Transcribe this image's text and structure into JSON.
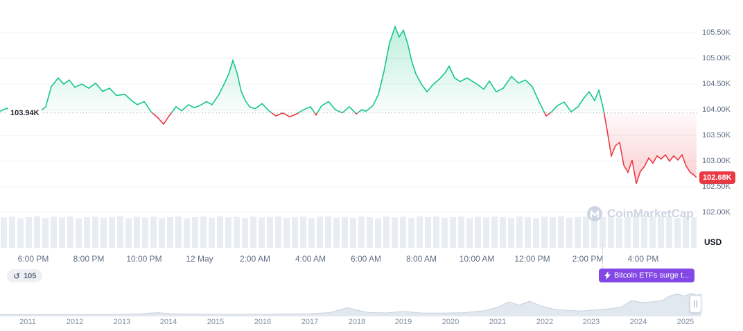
{
  "colors": {
    "green": "#16c784",
    "red": "#ea3943",
    "baseline_line": "#a0aabe",
    "grid": "#eff2f6",
    "axis_text": "#616e85",
    "dark_text": "#222531",
    "volume_bar": "#e8edf3",
    "nav_fill": "#e2e8f0",
    "nav_stroke": "#c8d1dd",
    "news_purple": "#8247e5",
    "pill_bg": "#eef0f4",
    "watermark": "#cdd5e4"
  },
  "watermark": {
    "text": "CoinMarketCap"
  },
  "badges": {
    "history_count": "105",
    "news_label": "Bitcoin ETFs surge t..."
  },
  "chart_data": {
    "type": "line",
    "title": "",
    "xlabel": "",
    "ylabel": "",
    "baseline": {
      "value": 103.94,
      "label": "103.94K"
    },
    "current": {
      "value": 102.68,
      "label": "102.68K"
    },
    "y_axis": {
      "currency_label": "USD",
      "range": [
        101.27,
        106.14
      ],
      "ticks": [
        {
          "value": 105.5,
          "label": "105.50K"
        },
        {
          "value": 105.0,
          "label": "105.00K"
        },
        {
          "value": 104.5,
          "label": "104.50K"
        },
        {
          "value": 104.0,
          "label": "104.00K"
        },
        {
          "value": 103.5,
          "label": "103.50K"
        },
        {
          "value": 103.0,
          "label": "103.00K"
        },
        {
          "value": 102.5,
          "label": "102.50K"
        },
        {
          "value": 102.0,
          "label": "102.00K"
        }
      ]
    },
    "x_axis": {
      "range": [
        0,
        25.125
      ],
      "ticks": [
        {
          "t": 1.2,
          "label": "6:00 PM"
        },
        {
          "t": 3.2,
          "label": "8:00 PM"
        },
        {
          "t": 5.2,
          "label": "10:00 PM"
        },
        {
          "t": 7.2,
          "label": "12 May"
        },
        {
          "t": 9.2,
          "label": "2:00 AM"
        },
        {
          "t": 11.2,
          "label": "4:00 AM"
        },
        {
          "t": 13.2,
          "label": "6:00 AM"
        },
        {
          "t": 15.2,
          "label": "8:00 AM"
        },
        {
          "t": 17.2,
          "label": "10:00 AM"
        },
        {
          "t": 19.2,
          "label": "12:00 PM"
        },
        {
          "t": 21.2,
          "label": "2:00 PM"
        },
        {
          "t": 23.2,
          "label": "4:00 PM"
        }
      ]
    },
    "series": [
      [
        0,
        103.97
      ],
      [
        0.25,
        104.03
      ],
      [
        0.45,
        103.96
      ],
      [
        0.7,
        104.04
      ],
      [
        0.95,
        103.99
      ],
      [
        1.2,
        104.03
      ],
      [
        1.45,
        103.97
      ],
      [
        1.65,
        104.06
      ],
      [
        1.85,
        104.45
      ],
      [
        2.1,
        104.62
      ],
      [
        2.3,
        104.5
      ],
      [
        2.5,
        104.58
      ],
      [
        2.7,
        104.44
      ],
      [
        2.95,
        104.5
      ],
      [
        3.2,
        104.42
      ],
      [
        3.45,
        104.52
      ],
      [
        3.7,
        104.36
      ],
      [
        3.95,
        104.42
      ],
      [
        4.2,
        104.28
      ],
      [
        4.5,
        104.3
      ],
      [
        4.75,
        104.18
      ],
      [
        4.95,
        104.1
      ],
      [
        5.2,
        104.16
      ],
      [
        5.45,
        103.96
      ],
      [
        5.7,
        103.84
      ],
      [
        5.9,
        103.72
      ],
      [
        6.1,
        103.88
      ],
      [
        6.35,
        104.06
      ],
      [
        6.55,
        103.98
      ],
      [
        6.8,
        104.1
      ],
      [
        7.0,
        104.04
      ],
      [
        7.2,
        104.08
      ],
      [
        7.45,
        104.16
      ],
      [
        7.65,
        104.1
      ],
      [
        7.9,
        104.3
      ],
      [
        8.1,
        104.52
      ],
      [
        8.25,
        104.7
      ],
      [
        8.4,
        104.96
      ],
      [
        8.55,
        104.72
      ],
      [
        8.7,
        104.36
      ],
      [
        8.85,
        104.18
      ],
      [
        9.0,
        104.06
      ],
      [
        9.2,
        104.02
      ],
      [
        9.45,
        104.12
      ],
      [
        9.7,
        103.98
      ],
      [
        9.95,
        103.88
      ],
      [
        10.2,
        103.94
      ],
      [
        10.45,
        103.86
      ],
      [
        10.7,
        103.92
      ],
      [
        10.95,
        104.0
      ],
      [
        11.2,
        104.06
      ],
      [
        11.4,
        103.9
      ],
      [
        11.6,
        104.08
      ],
      [
        11.85,
        104.16
      ],
      [
        12.1,
        104.0
      ],
      [
        12.35,
        103.94
      ],
      [
        12.6,
        104.06
      ],
      [
        12.85,
        103.92
      ],
      [
        13.05,
        104.0
      ],
      [
        13.2,
        103.97
      ],
      [
        13.45,
        104.08
      ],
      [
        13.65,
        104.3
      ],
      [
        13.85,
        104.75
      ],
      [
        14.05,
        105.3
      ],
      [
        14.25,
        105.62
      ],
      [
        14.4,
        105.42
      ],
      [
        14.55,
        105.55
      ],
      [
        14.7,
        105.3
      ],
      [
        14.85,
        104.95
      ],
      [
        15.0,
        104.7
      ],
      [
        15.2,
        104.5
      ],
      [
        15.4,
        104.35
      ],
      [
        15.6,
        104.48
      ],
      [
        15.85,
        104.6
      ],
      [
        16.05,
        104.72
      ],
      [
        16.2,
        104.85
      ],
      [
        16.4,
        104.62
      ],
      [
        16.6,
        104.55
      ],
      [
        16.85,
        104.62
      ],
      [
        17.2,
        104.5
      ],
      [
        17.45,
        104.4
      ],
      [
        17.65,
        104.56
      ],
      [
        17.9,
        104.35
      ],
      [
        18.15,
        104.42
      ],
      [
        18.45,
        104.65
      ],
      [
        18.7,
        104.52
      ],
      [
        18.95,
        104.58
      ],
      [
        19.2,
        104.45
      ],
      [
        19.45,
        104.15
      ],
      [
        19.7,
        103.88
      ],
      [
        19.9,
        103.96
      ],
      [
        20.1,
        104.08
      ],
      [
        20.35,
        104.15
      ],
      [
        20.6,
        103.96
      ],
      [
        20.85,
        104.06
      ],
      [
        21.05,
        104.22
      ],
      [
        21.25,
        104.35
      ],
      [
        21.45,
        104.18
      ],
      [
        21.6,
        104.38
      ],
      [
        21.75,
        104.05
      ],
      [
        21.9,
        103.6
      ],
      [
        22.05,
        103.1
      ],
      [
        22.2,
        103.3
      ],
      [
        22.35,
        103.36
      ],
      [
        22.5,
        102.92
      ],
      [
        22.65,
        102.78
      ],
      [
        22.8,
        103.02
      ],
      [
        22.95,
        102.56
      ],
      [
        23.1,
        102.8
      ],
      [
        23.25,
        102.9
      ],
      [
        23.4,
        103.06
      ],
      [
        23.55,
        102.96
      ],
      [
        23.7,
        103.1
      ],
      [
        23.85,
        103.04
      ],
      [
        24.0,
        103.12
      ],
      [
        24.15,
        103.0
      ],
      [
        24.3,
        103.1
      ],
      [
        24.45,
        103.02
      ],
      [
        24.6,
        103.12
      ],
      [
        24.75,
        102.9
      ],
      [
        24.9,
        102.78
      ],
      [
        25.05,
        102.72
      ],
      [
        25.12,
        102.68
      ]
    ],
    "volume": [
      0.8,
      0.9,
      0.7,
      0.85,
      0.95,
      0.75,
      0.88,
      0.8,
      0.92,
      0.7,
      0.84,
      0.9,
      0.78,
      0.86,
      0.94,
      0.72,
      0.88,
      0.8,
      0.9,
      0.76,
      0.84,
      0.92,
      0.7,
      0.86,
      0.9,
      0.78,
      0.94,
      0.82,
      0.88,
      0.74,
      0.9,
      0.8,
      0.86,
      0.92,
      0.76,
      0.84,
      0.9,
      0.72,
      0.88,
      0.94,
      0.8,
      0.86,
      0.78,
      0.92,
      0.84,
      0.7,
      0.9,
      0.82,
      0.88,
      0.76,
      0.94,
      0.84,
      0.9,
      0.78,
      0.86,
      0.92,
      0.74,
      0.88,
      0.8,
      0.9,
      0.84,
      0.76,
      0.92,
      0.86,
      0.7,
      0.9,
      0.82,
      0.94,
      0.78,
      0.86,
      0.9,
      0.74,
      0.88,
      0.92,
      0.8,
      0.86,
      0.94,
      0.78,
      0.9,
      0.84,
      0.88,
      0.76,
      0.92,
      0.85
    ]
  },
  "navigator": {
    "years": [
      "2011",
      "2012",
      "2013",
      "2014",
      "2015",
      "2016",
      "2017",
      "2018",
      "2019",
      "2020",
      "2021",
      "2022",
      "2023",
      "2024",
      "2025"
    ],
    "series": [
      [
        0,
        0.015
      ],
      [
        0.08,
        0.02
      ],
      [
        0.15,
        0.02
      ],
      [
        0.2,
        0.05
      ],
      [
        0.225,
        0.09
      ],
      [
        0.25,
        0.04
      ],
      [
        0.3,
        0.03
      ],
      [
        0.35,
        0.03
      ],
      [
        0.4,
        0.04
      ],
      [
        0.44,
        0.05
      ],
      [
        0.47,
        0.09
      ],
      [
        0.495,
        0.28
      ],
      [
        0.51,
        0.18
      ],
      [
        0.525,
        0.1
      ],
      [
        0.55,
        0.08
      ],
      [
        0.575,
        0.14
      ],
      [
        0.6,
        0.08
      ],
      [
        0.63,
        0.07
      ],
      [
        0.66,
        0.09
      ],
      [
        0.69,
        0.16
      ],
      [
        0.71,
        0.3
      ],
      [
        0.725,
        0.5
      ],
      [
        0.74,
        0.38
      ],
      [
        0.755,
        0.52
      ],
      [
        0.77,
        0.36
      ],
      [
        0.79,
        0.22
      ],
      [
        0.81,
        0.17
      ],
      [
        0.83,
        0.15
      ],
      [
        0.85,
        0.2
      ],
      [
        0.87,
        0.24
      ],
      [
        0.885,
        0.3
      ],
      [
        0.9,
        0.55
      ],
      [
        0.915,
        0.48
      ],
      [
        0.93,
        0.5
      ],
      [
        0.945,
        0.56
      ],
      [
        0.955,
        0.72
      ],
      [
        0.965,
        0.8
      ],
      [
        0.975,
        0.72
      ],
      [
        0.985,
        0.82
      ],
      [
        0.993,
        0.75
      ],
      [
        1,
        0.78
      ]
    ]
  }
}
